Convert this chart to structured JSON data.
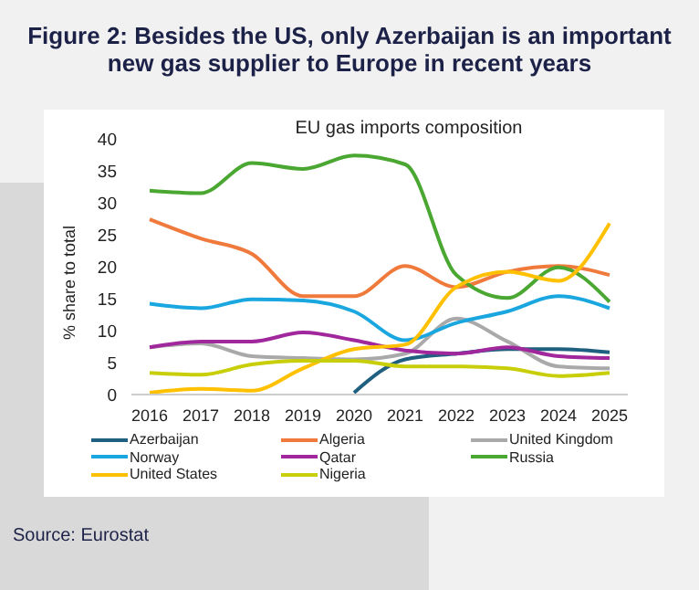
{
  "chart_data": {
    "type": "line",
    "title": "Figure 2: Besides the US, only Azerbaijan is an important new gas supplier to Europe in recent years",
    "subtitle": "EU gas imports composition",
    "ylabel": "% share to total",
    "categories": [
      "2016",
      "2017",
      "2018",
      "2019",
      "2020",
      "2021",
      "2022",
      "2023",
      "2024",
      "2025"
    ],
    "series": [
      {
        "name": "Azerbaijan",
        "color": "#1f5f7f",
        "values": [
          null,
          null,
          null,
          null,
          0.3,
          5.5,
          6.4,
          7.1,
          7.1,
          6.6
        ]
      },
      {
        "name": "Algeria",
        "color": "#f07a3c",
        "values": [
          27.4,
          24.4,
          22,
          15.4,
          15.4,
          20.1,
          16.8,
          19.2,
          20.1,
          18.7
        ]
      },
      {
        "name": "United Kingdom",
        "color": "#a9a9a9",
        "values": [
          7.4,
          8,
          6,
          5.7,
          5.5,
          6.4,
          11.9,
          8.3,
          4.4,
          4.1
        ]
      },
      {
        "name": "Norway",
        "color": "#1aa7e0",
        "values": [
          14.2,
          13.5,
          14.9,
          14.7,
          13,
          8.5,
          11.2,
          13,
          15.4,
          13.5
        ]
      },
      {
        "name": "Qatar",
        "color": "#a0289c",
        "values": [
          7.4,
          8.3,
          8.3,
          9.7,
          8.5,
          6.9,
          6.4,
          7.4,
          6,
          5.7
        ]
      },
      {
        "name": "Russia",
        "color": "#4aa832",
        "values": [
          31.9,
          31.5,
          36.2,
          35.3,
          37.4,
          36,
          18.7,
          15.1,
          19.9,
          14.5
        ]
      },
      {
        "name": "United States",
        "color": "#ffc000",
        "values": [
          0.3,
          0.9,
          0.6,
          4.1,
          7.1,
          7.8,
          16.8,
          19.2,
          17.8,
          26.8
        ]
      },
      {
        "name": "Nigeria",
        "color": "#c8cf0a",
        "values": [
          3.4,
          3.1,
          4.7,
          5.3,
          5.3,
          4.4,
          4.4,
          4.1,
          2.9,
          3.4
        ]
      }
    ],
    "ylim": [
      0,
      40
    ],
    "yticks": [
      0,
      5,
      10,
      15,
      20,
      25,
      30,
      35,
      40
    ],
    "grid": false,
    "legend": "bottom",
    "marker": "none",
    "line_style": "solid",
    "annotations": [
      "Source: Eurostat"
    ]
  }
}
